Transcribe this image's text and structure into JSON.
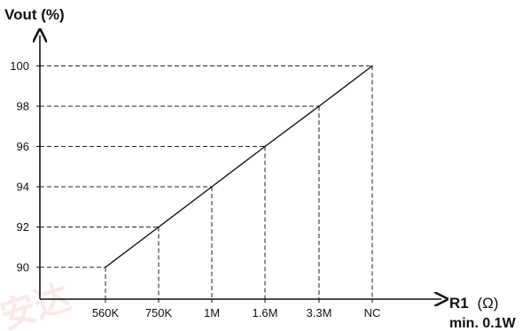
{
  "chart_data": {
    "type": "line",
    "title": "",
    "ylabel": "Vout (%)",
    "xlabel_main": "R1",
    "xlabel_unit": "(Ω)",
    "xlabel_note": "min. 0.1W",
    "categories": [
      "560K",
      "750K",
      "1M",
      "1.6M",
      "3.3M",
      "NC"
    ],
    "y_ticks": [
      90,
      92,
      94,
      96,
      98,
      100
    ],
    "ylim": [
      89,
      101
    ],
    "series": [
      {
        "values": [
          90,
          92,
          94,
          96,
          98,
          100
        ]
      }
    ],
    "guides": "dashed",
    "grid": false,
    "legend": "none"
  }
}
